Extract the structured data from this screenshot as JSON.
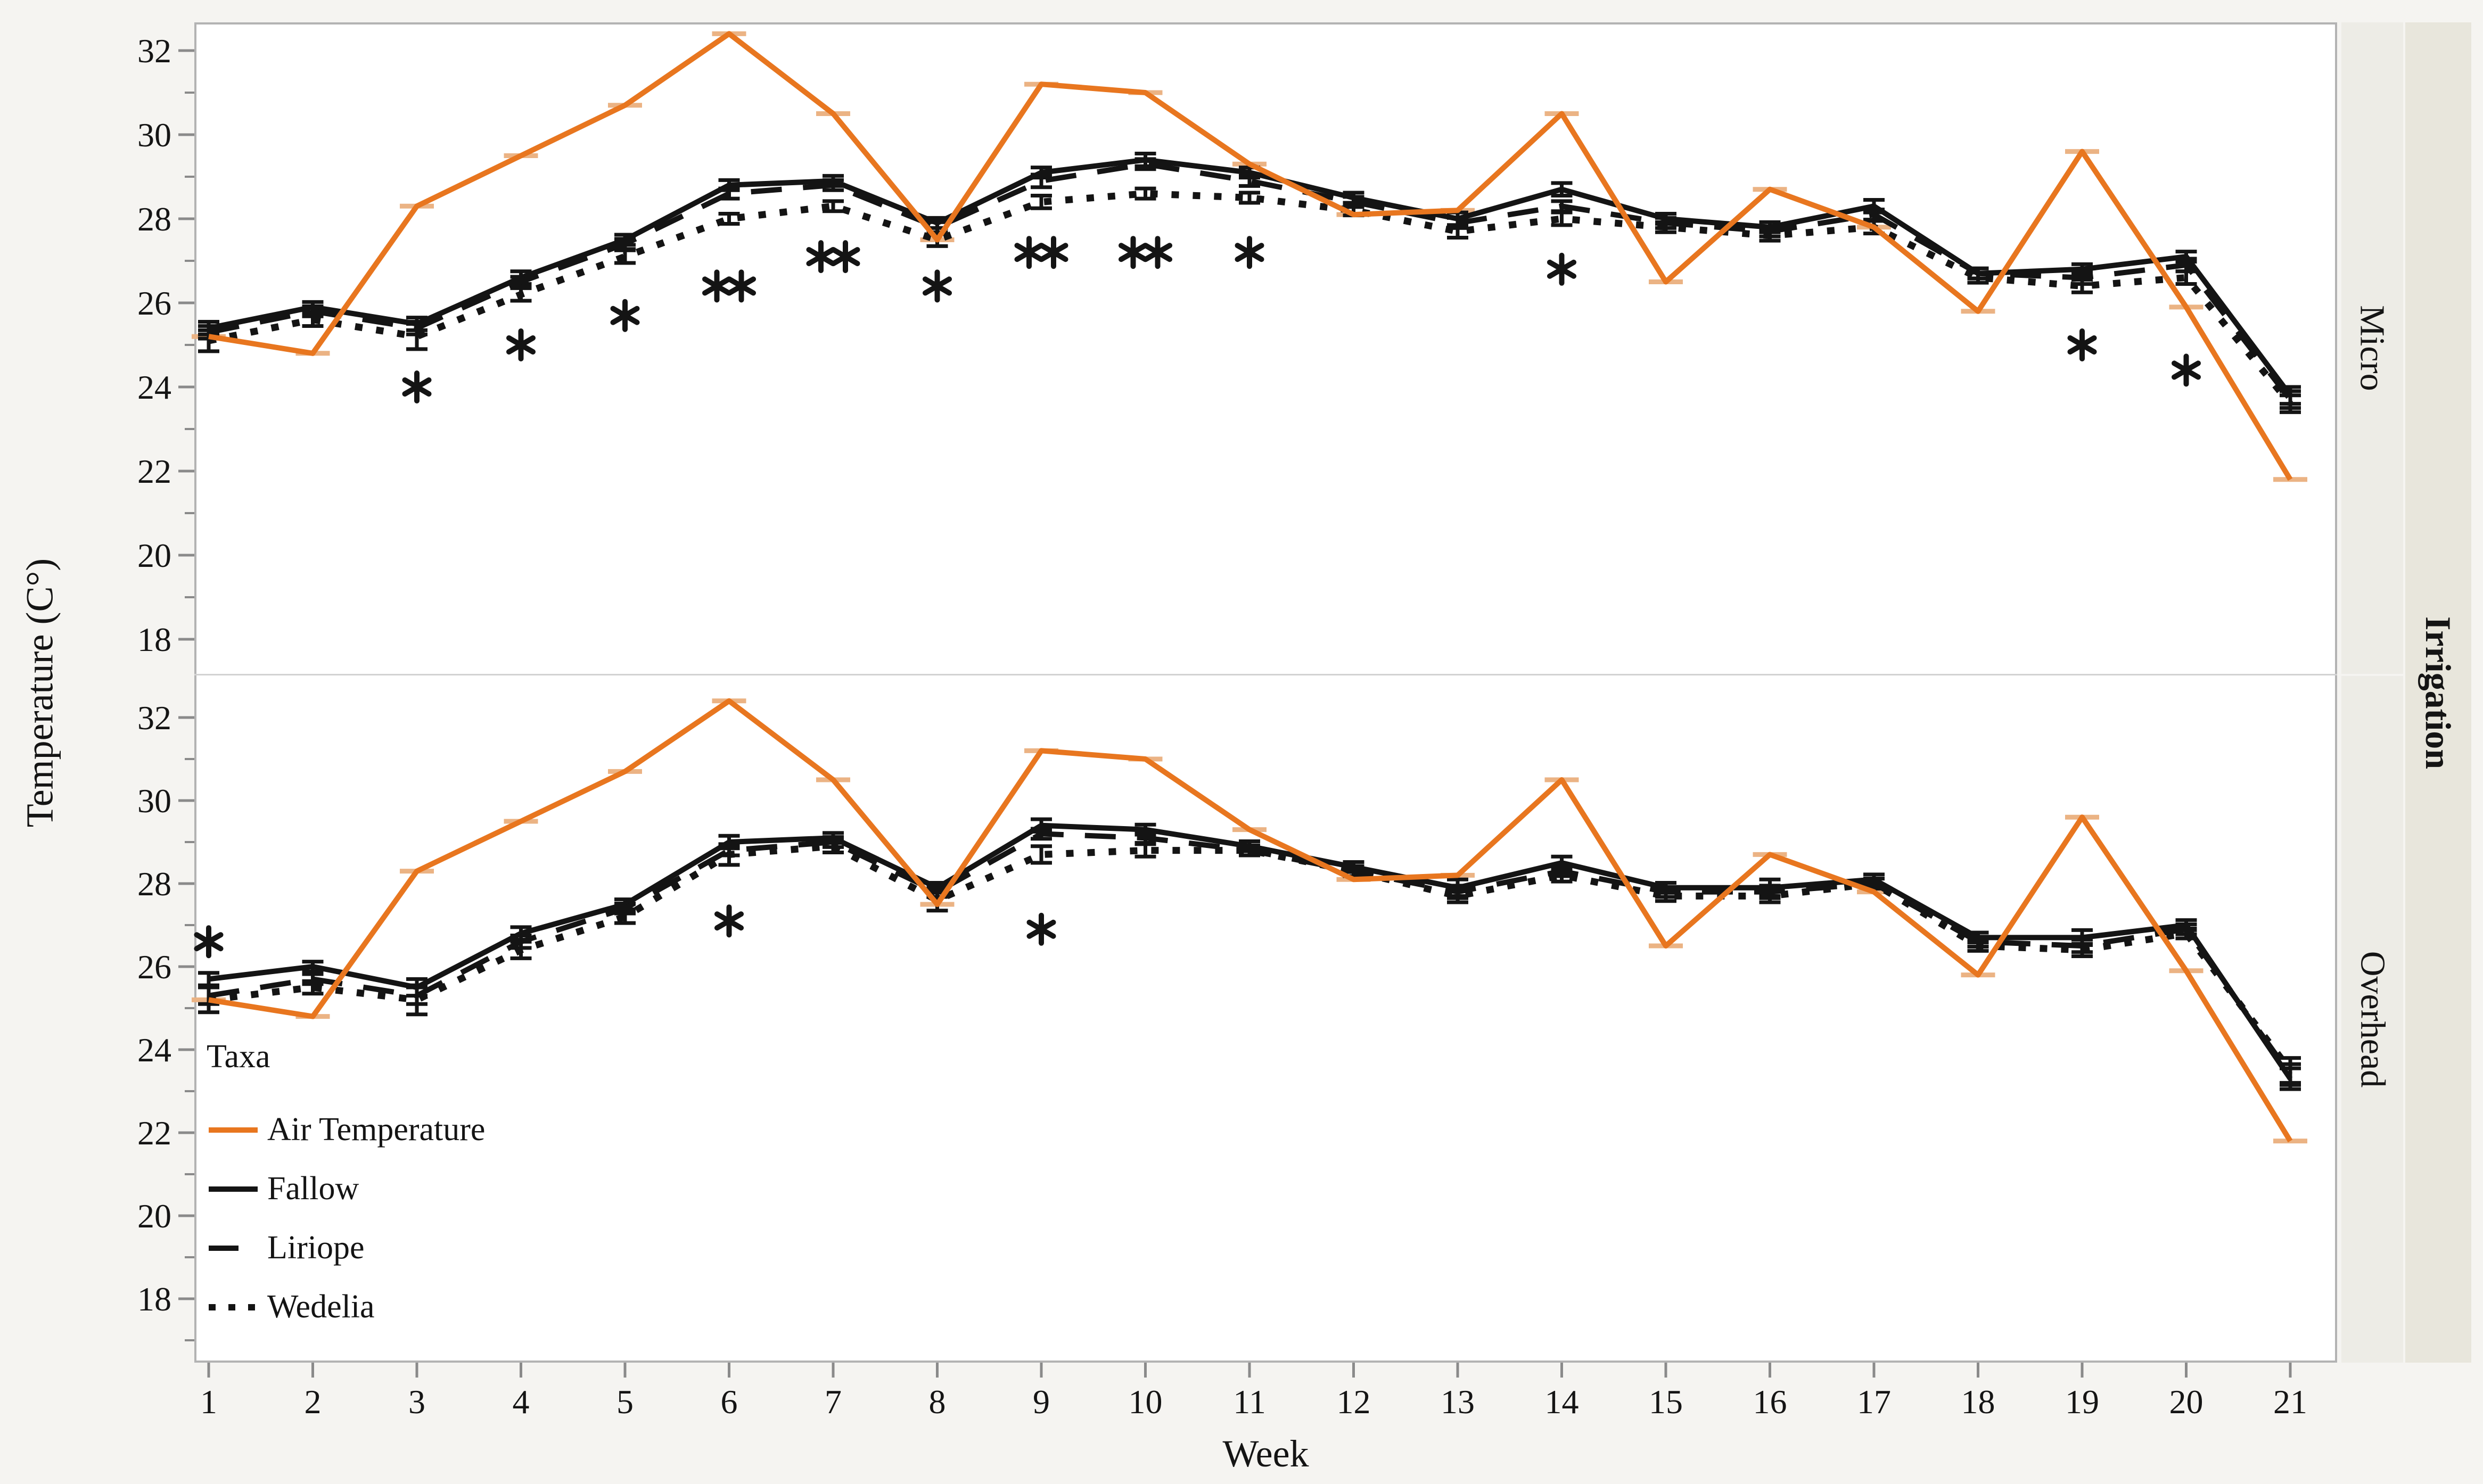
{
  "figure": {
    "y_axis_title": "Temperature (C°)",
    "x_axis_title": "Week",
    "facets": {
      "row_labels": [
        "Micro",
        "Overhead"
      ],
      "group_label": "Irrigation"
    }
  },
  "chart_data": {
    "type": "line",
    "title": "",
    "xlabel": "Week",
    "ylabel": "Temperature (C°)",
    "x": [
      1,
      2,
      3,
      4,
      5,
      6,
      7,
      8,
      9,
      10,
      11,
      12,
      13,
      14,
      15,
      16,
      17,
      18,
      19,
      20,
      21
    ],
    "x_ticks": [
      1,
      2,
      3,
      4,
      5,
      6,
      7,
      8,
      9,
      10,
      11,
      12,
      13,
      14,
      15,
      16,
      17,
      18,
      19,
      20,
      21
    ],
    "y_ticks": [
      32,
      30,
      28,
      26,
      24,
      22,
      20,
      18
    ],
    "y_minor_ticks": [
      31,
      29,
      27,
      25,
      23,
      21,
      19,
      17
    ],
    "ylim": [
      17,
      33
    ],
    "grid": false,
    "legend_position": "bottom-left-inside",
    "accent_color": "#E8761F",
    "line_color": "#141414",
    "legend": {
      "title": "Taxa",
      "entries": [
        {
          "label": "Air Temperature",
          "color": "#E8761F",
          "style": "solid"
        },
        {
          "label": "Fallow",
          "color": "#141414",
          "style": "solid"
        },
        {
          "label": "Liriope",
          "color": "#141414",
          "style": "dashed"
        },
        {
          "label": "Wedelia",
          "color": "#141414",
          "style": "dotted"
        }
      ]
    },
    "facet_group_label": "Irrigation",
    "panels": [
      {
        "label": "Micro",
        "series": [
          {
            "name": "Air Temperature",
            "color": "#E8761F",
            "style": "solid",
            "values": [
              25.2,
              24.8,
              28.3,
              29.5,
              30.7,
              32.4,
              30.5,
              27.5,
              31.2,
              31.0,
              29.3,
              28.1,
              28.2,
              30.5,
              26.5,
              28.7,
              27.8,
              25.8,
              29.6,
              25.9,
              21.8
            ]
          },
          {
            "name": "Fallow",
            "color": "#141414",
            "style": "solid",
            "values": [
              25.4,
              25.9,
              25.5,
              26.6,
              27.5,
              28.8,
              28.9,
              27.9,
              29.1,
              29.4,
              29.1,
              28.5,
              28.0,
              28.7,
              28.0,
              27.8,
              28.3,
              26.7,
              26.8,
              27.1,
              23.8
            ],
            "se": [
              0.15,
              0.12,
              0.15,
              0.15,
              0.12,
              0.12,
              0.12,
              0.12,
              0.12,
              0.15,
              0.12,
              0.12,
              0.15,
              0.15,
              0.12,
              0.12,
              0.15,
              0.12,
              0.12,
              0.12,
              0.2
            ]
          },
          {
            "name": "Liriope",
            "color": "#141414",
            "style": "dashed",
            "values": [
              25.3,
              25.8,
              25.4,
              26.5,
              27.4,
              28.6,
              28.8,
              27.8,
              28.9,
              29.3,
              28.9,
              28.4,
              27.9,
              28.3,
              27.9,
              27.7,
              28.1,
              26.7,
              26.6,
              26.9,
              23.7
            ],
            "se": [
              0.15,
              0.12,
              0.15,
              0.12,
              0.12,
              0.12,
              0.12,
              0.12,
              0.15,
              0.12,
              0.12,
              0.12,
              0.12,
              0.12,
              0.12,
              0.12,
              0.12,
              0.12,
              0.15,
              0.15,
              0.2
            ]
          },
          {
            "name": "Wedelia",
            "color": "#141414",
            "style": "dotted",
            "values": [
              25.1,
              25.6,
              25.2,
              26.2,
              27.1,
              28.0,
              28.3,
              27.5,
              28.4,
              28.6,
              28.5,
              28.2,
              27.7,
              28.0,
              27.8,
              27.6,
              27.8,
              26.6,
              26.4,
              26.6,
              23.6
            ],
            "se": [
              0.25,
              0.15,
              0.3,
              0.15,
              0.15,
              0.12,
              0.12,
              0.15,
              0.15,
              0.12,
              0.12,
              0.12,
              0.15,
              0.15,
              0.12,
              0.12,
              0.15,
              0.12,
              0.15,
              0.15,
              0.2
            ]
          }
        ],
        "significance_markers": [
          {
            "week": 3,
            "temp": 24.0,
            "count": 1
          },
          {
            "week": 4,
            "temp": 25.0,
            "count": 1
          },
          {
            "week": 5,
            "temp": 25.7,
            "count": 1
          },
          {
            "week": 6,
            "temp": 26.4,
            "count": 2
          },
          {
            "week": 7,
            "temp": 27.1,
            "count": 2
          },
          {
            "week": 8,
            "temp": 26.4,
            "count": 1
          },
          {
            "week": 9,
            "temp": 27.2,
            "count": 2
          },
          {
            "week": 10,
            "temp": 27.2,
            "count": 2
          },
          {
            "week": 11,
            "temp": 27.2,
            "count": 1
          },
          {
            "week": 14,
            "temp": 26.8,
            "count": 1
          },
          {
            "week": 19,
            "temp": 25.0,
            "count": 1
          },
          {
            "week": 20,
            "temp": 24.4,
            "count": 1
          }
        ]
      },
      {
        "label": "Overhead",
        "series": [
          {
            "name": "Air Temperature",
            "color": "#E8761F",
            "style": "solid",
            "values": [
              25.2,
              24.8,
              28.3,
              29.5,
              30.7,
              32.4,
              30.5,
              27.5,
              31.2,
              31.0,
              29.3,
              28.1,
              28.2,
              30.5,
              26.5,
              28.7,
              27.8,
              25.8,
              29.6,
              25.9,
              21.8
            ]
          },
          {
            "name": "Fallow",
            "color": "#141414",
            "style": "solid",
            "values": [
              25.7,
              26.0,
              25.5,
              26.8,
              27.5,
              29.0,
              29.1,
              27.9,
              29.4,
              29.3,
              28.9,
              28.4,
              27.9,
              28.5,
              27.9,
              27.9,
              28.1,
              26.7,
              26.7,
              27.0,
              23.3
            ],
            "se": [
              0.15,
              0.12,
              0.2,
              0.15,
              0.12,
              0.15,
              0.12,
              0.12,
              0.15,
              0.12,
              0.12,
              0.12,
              0.2,
              0.15,
              0.12,
              0.2,
              0.12,
              0.12,
              0.18,
              0.12,
              0.25
            ]
          },
          {
            "name": "Liriope",
            "color": "#141414",
            "style": "dashed",
            "values": [
              25.3,
              25.7,
              25.3,
              26.6,
              27.4,
              28.8,
              29.0,
              27.8,
              29.2,
              29.1,
              28.8,
              28.3,
              27.8,
              28.3,
              27.8,
              27.8,
              28.0,
              26.6,
              26.5,
              26.9,
              23.4
            ],
            "se": [
              0.2,
              0.12,
              0.2,
              0.15,
              0.12,
              0.12,
              0.12,
              0.12,
              0.12,
              0.12,
              0.12,
              0.12,
              0.15,
              0.12,
              0.12,
              0.15,
              0.12,
              0.12,
              0.15,
              0.12,
              0.25
            ]
          },
          {
            "name": "Wedelia",
            "color": "#141414",
            "style": "dotted",
            "values": [
              25.2,
              25.5,
              25.2,
              26.4,
              27.2,
              28.7,
              28.9,
              27.6,
              28.7,
              28.8,
              28.8,
              28.3,
              27.7,
              28.2,
              27.7,
              27.7,
              28.0,
              26.5,
              26.4,
              26.8,
              23.5
            ],
            "se": [
              0.3,
              0.15,
              0.35,
              0.2,
              0.15,
              0.25,
              0.15,
              0.25,
              0.2,
              0.15,
              0.12,
              0.12,
              0.15,
              0.15,
              0.12,
              0.15,
              0.12,
              0.12,
              0.15,
              0.12,
              0.3
            ]
          }
        ],
        "significance_markers": [
          {
            "week": 1,
            "temp": 26.6,
            "count": 1
          },
          {
            "week": 6,
            "temp": 27.1,
            "count": 1
          },
          {
            "week": 9,
            "temp": 26.9,
            "count": 1
          }
        ]
      }
    ]
  }
}
